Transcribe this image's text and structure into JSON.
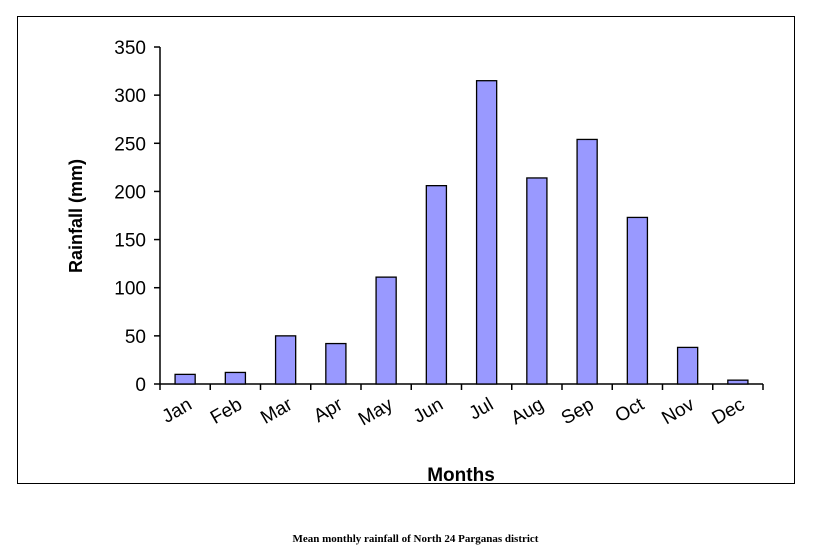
{
  "chart_data": {
    "type": "bar",
    "categories": [
      "Jan",
      "Feb",
      "Mar",
      "Apr",
      "May",
      "Jun",
      "Jul",
      "Aug",
      "Sep",
      "Oct",
      "Nov",
      "Dec"
    ],
    "values": [
      10,
      12,
      50,
      42,
      111,
      206,
      315,
      214,
      254,
      173,
      38,
      4
    ],
    "xlabel": "Months",
    "ylabel": "Rainfall (mm)",
    "ylim": [
      0,
      350
    ],
    "yticks": [
      0,
      50,
      100,
      150,
      200,
      250,
      300,
      350
    ],
    "bar_color": "#9999ff",
    "grid": false,
    "legend": "none"
  },
  "caption": "Mean monthly rainfall of North 24 Parganas district"
}
